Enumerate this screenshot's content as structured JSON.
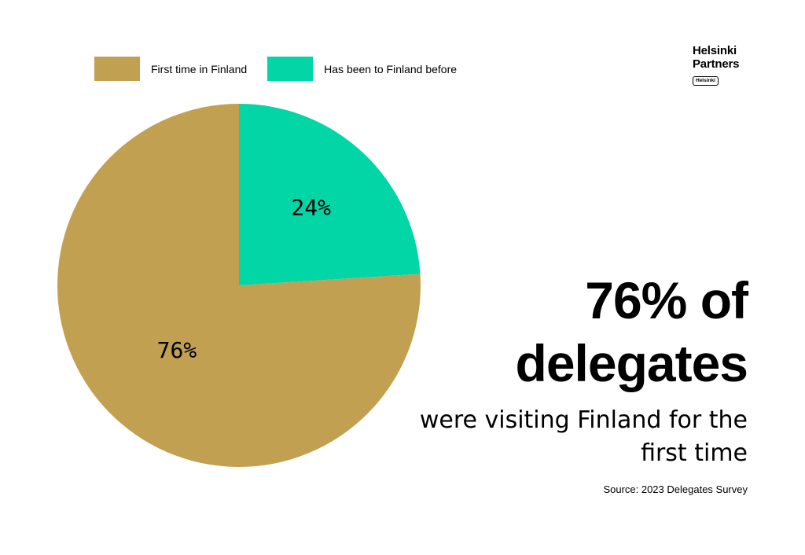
{
  "chart_data": {
    "type": "pie",
    "slices": [
      {
        "label": "Has been to Finland before",
        "value": 24,
        "display": "24%",
        "color": "#02d6a6"
      },
      {
        "label": "First time in Finland",
        "value": 76,
        "display": "76%",
        "color": "#c2a052"
      }
    ],
    "legend": {
      "placement": "top-left",
      "items": [
        {
          "label": "First time in Finland",
          "color": "#c2a052"
        },
        {
          "label": "Has been to Finland before",
          "color": "#02d6a6"
        }
      ]
    }
  },
  "logo": {
    "line1": "Helsinki",
    "line2": "Partners",
    "badge": "Helsinki"
  },
  "headline": {
    "line1": "76% of",
    "line2": "delegates"
  },
  "subhead": {
    "line1": "were visiting Finland for the",
    "line2": "first time"
  },
  "source": "Source: 2023 Delegates Survey"
}
